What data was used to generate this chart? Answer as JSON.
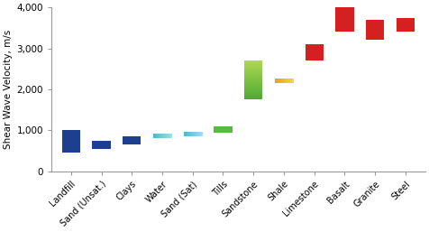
{
  "categories": [
    "Landfill",
    "Sand (Unsat.)",
    "Clays",
    "Water",
    "Sand (Sat)",
    "Tills",
    "Sandstone",
    "Shale",
    "Limestone",
    "Basalt",
    "Granite",
    "Steel"
  ],
  "ranges": [
    [
      450,
      1000
    ],
    [
      550,
      750
    ],
    [
      650,
      850
    ],
    [
      800,
      900
    ],
    [
      850,
      950
    ],
    [
      950,
      1100
    ],
    [
      1750,
      2700
    ],
    [
      2150,
      2250
    ],
    [
      2700,
      3100
    ],
    [
      3400,
      4000
    ],
    [
      3200,
      3700
    ],
    [
      3400,
      3750
    ]
  ],
  "bar_types": [
    "blue",
    "blue",
    "blue",
    "cyan_h",
    "cyan_h",
    "green_solid",
    "green_grad",
    "orange_grad",
    "red",
    "red",
    "red",
    "red"
  ],
  "blue_color": "#1e3f8e",
  "cyan_left": "#4bbac8",
  "cyan_right": "#a8dde8",
  "green_solid_color": "#5ab944",
  "sandstone_bottom": "#4caa30",
  "sandstone_top": "#b0d855",
  "shale_left": "#e8a020",
  "shale_right": "#f5d840",
  "red_color": "#d42020",
  "ylabel": "Shear Wave Velocity, m/s",
  "ylim": [
    0,
    4000
  ],
  "yticks": [
    0,
    1000,
    2000,
    3000,
    4000
  ],
  "ytick_labels": [
    "0",
    "1,000",
    "2,000",
    "3,000",
    "4,000"
  ],
  "background_color": "#ffffff",
  "figsize": [
    4.76,
    2.57
  ],
  "dpi": 100,
  "bar_width": 0.6
}
